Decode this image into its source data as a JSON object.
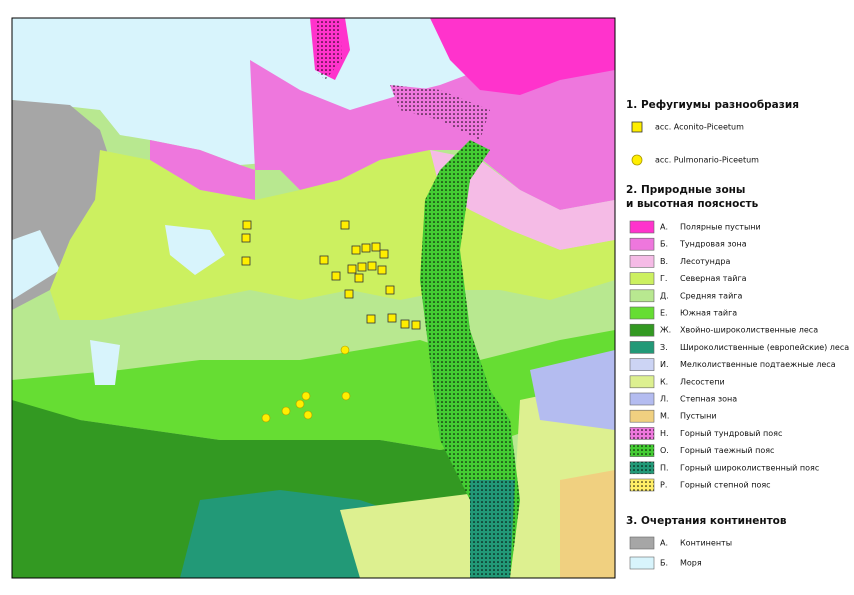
{
  "legend": {
    "refugia": {
      "title": "1. Рефугиумы разнообразия",
      "items": [
        {
          "label": "асс. Aconito-Piceetum",
          "color": "#ffee00"
        },
        {
          "label": "асс. Pulmonario-Piceetum",
          "color": "#ffee00"
        }
      ]
    },
    "zones": {
      "title": [
        "2.   Природные зоны",
        "и высотная поясность"
      ],
      "items": [
        {
          "letter": "А.",
          "label": "Полярные пустыни",
          "color": "#ff33cc"
        },
        {
          "letter": "Б.",
          "label": "Тундровая зона",
          "color": "#ee77dd"
        },
        {
          "letter": "В.",
          "label": "Лесотундра",
          "color": "#f5bbe6"
        },
        {
          "letter": "Г.",
          "label": "Северная тайга",
          "color": "#ccf060"
        },
        {
          "letter": "Д.",
          "label": "Средняя тайга",
          "color": "#b8e890"
        },
        {
          "letter": "Е.",
          "label": "Южная тайга",
          "color": "#66dd33"
        },
        {
          "letter": "Ж.",
          "label": "Хвойно-широколиственные леса",
          "color": "#339922"
        },
        {
          "letter": "З.",
          "label": "Широколиственные (европейские) леса",
          "color": "#229977"
        },
        {
          "letter": "И.",
          "label": "Мелколиственные подтаежные леса",
          "color": "#ccd4f4"
        },
        {
          "letter": "К.",
          "label": "Лесостепи",
          "color": "#ddf090"
        },
        {
          "letter": "Л.",
          "label": "Степная зона",
          "color": "#b4bcf0"
        },
        {
          "letter": "М.",
          "label": "Пустыни",
          "color": "#f0d080"
        },
        {
          "letter": "Н.",
          "label": "Горный тундровый пояс",
          "color": "#ee77dd",
          "dotted": true
        },
        {
          "letter": "О.",
          "label": "Горный таежный пояс",
          "color": "#44cc33",
          "dotted": true
        },
        {
          "letter": "П.",
          "label": "Горный широколиственный пояс",
          "color": "#229977",
          "dotted": true
        },
        {
          "letter": "Р.",
          "label": "Горный степной пояс",
          "color": "#ffee66",
          "dotted": true
        }
      ]
    },
    "continents": {
      "title": "3. Очертания континентов",
      "items": [
        {
          "letter": "А.",
          "label": "Континенты",
          "color": "#a6a6a6"
        },
        {
          "letter": "Б.",
          "label": "Моря",
          "color": "#d8f4fc"
        }
      ]
    }
  }
}
